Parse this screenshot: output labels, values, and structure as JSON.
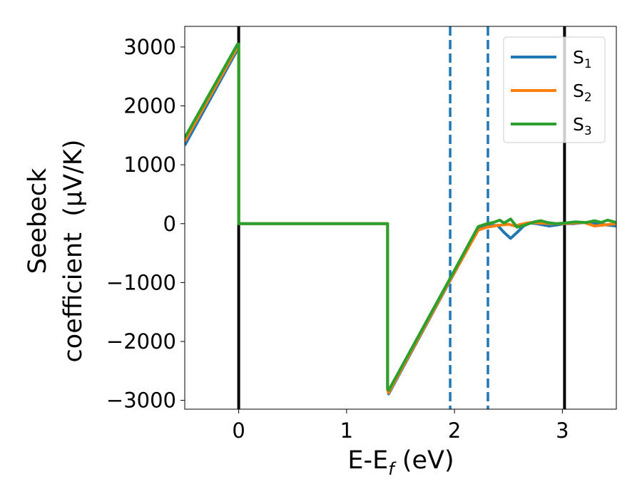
{
  "chart_data": {
    "type": "line",
    "title": "",
    "xlabel": {
      "main": "E-E",
      "sub": "f",
      "unit": " (eV)"
    },
    "ylabel": {
      "line1": "Seebeck",
      "line2": "coefficient  (μV/K)"
    },
    "xlim": [
      -0.5,
      3.5
    ],
    "ylim": [
      -3150,
      3350
    ],
    "xticks": [
      0,
      1,
      2,
      3
    ],
    "xtick_labels": [
      "0",
      "1",
      "2",
      "3"
    ],
    "yticks": [
      -3000,
      -2000,
      -1000,
      0,
      1000,
      2000,
      3000
    ],
    "ytick_labels": [
      "−3000",
      "−2000",
      "−1000",
      "0",
      "1000",
      "2000",
      "3000"
    ],
    "grid": false,
    "legend_position": "top-right",
    "vertical_lines": [
      {
        "x": 0,
        "style": "solid",
        "color": "#000000"
      },
      {
        "x": 3.02,
        "style": "solid",
        "color": "#000000"
      },
      {
        "x": 1.96,
        "style": "dashed",
        "color": "#1f77b4"
      },
      {
        "x": 2.31,
        "style": "dashed",
        "color": "#1f77b4"
      }
    ],
    "series": [
      {
        "name": "S",
        "sub": "1",
        "color": "#1f77b4",
        "points": [
          [
            -0.5,
            1330
          ],
          [
            -0.01,
            2960
          ],
          [
            0.0,
            2960
          ],
          [
            0.0,
            0
          ],
          [
            1.38,
            0
          ],
          [
            1.38,
            -2810
          ],
          [
            1.39,
            -2890
          ],
          [
            1.95,
            -1000
          ],
          [
            2.22,
            -100
          ],
          [
            2.3,
            -30
          ],
          [
            2.4,
            -30
          ],
          [
            2.46,
            -150
          ],
          [
            2.52,
            -250
          ],
          [
            2.58,
            -150
          ],
          [
            2.64,
            -40
          ],
          [
            2.7,
            10
          ],
          [
            2.76,
            0
          ],
          [
            2.82,
            -20
          ],
          [
            2.88,
            -40
          ],
          [
            2.96,
            -20
          ],
          [
            3.02,
            0
          ],
          [
            3.1,
            0
          ],
          [
            3.2,
            20
          ],
          [
            3.3,
            0
          ],
          [
            3.4,
            -20
          ],
          [
            3.5,
            -40
          ]
        ]
      },
      {
        "name": "S",
        "sub": "2",
        "color": "#ff7f0e",
        "points": [
          [
            -0.5,
            1400
          ],
          [
            -0.01,
            3000
          ],
          [
            0.0,
            3000
          ],
          [
            0.0,
            0
          ],
          [
            1.38,
            0
          ],
          [
            1.38,
            -2830
          ],
          [
            1.39,
            -2870
          ],
          [
            1.95,
            -990
          ],
          [
            2.22,
            -110
          ],
          [
            2.3,
            -60
          ],
          [
            2.4,
            -30
          ],
          [
            2.5,
            -10
          ],
          [
            2.56,
            -40
          ],
          [
            2.62,
            -10
          ],
          [
            2.7,
            20
          ],
          [
            2.8,
            10
          ],
          [
            2.9,
            0
          ],
          [
            3.0,
            0
          ],
          [
            3.1,
            10
          ],
          [
            3.2,
            20
          ],
          [
            3.3,
            -40
          ],
          [
            3.4,
            -20
          ],
          [
            3.5,
            0
          ]
        ]
      },
      {
        "name": "S",
        "sub": "3",
        "color": "#2ca02c",
        "points": [
          [
            -0.5,
            1460
          ],
          [
            -0.01,
            3050
          ],
          [
            0.0,
            3050
          ],
          [
            0.0,
            0
          ],
          [
            1.38,
            0
          ],
          [
            1.38,
            -2800
          ],
          [
            1.39,
            -2830
          ],
          [
            1.95,
            -960
          ],
          [
            2.22,
            -50
          ],
          [
            2.3,
            0
          ],
          [
            2.36,
            20
          ],
          [
            2.42,
            60
          ],
          [
            2.46,
            10
          ],
          [
            2.52,
            80
          ],
          [
            2.58,
            -60
          ],
          [
            2.66,
            -20
          ],
          [
            2.74,
            30
          ],
          [
            2.8,
            50
          ],
          [
            2.86,
            20
          ],
          [
            2.94,
            0
          ],
          [
            3.02,
            10
          ],
          [
            3.12,
            30
          ],
          [
            3.22,
            20
          ],
          [
            3.3,
            50
          ],
          [
            3.36,
            20
          ],
          [
            3.42,
            60
          ],
          [
            3.5,
            20
          ]
        ]
      }
    ]
  }
}
